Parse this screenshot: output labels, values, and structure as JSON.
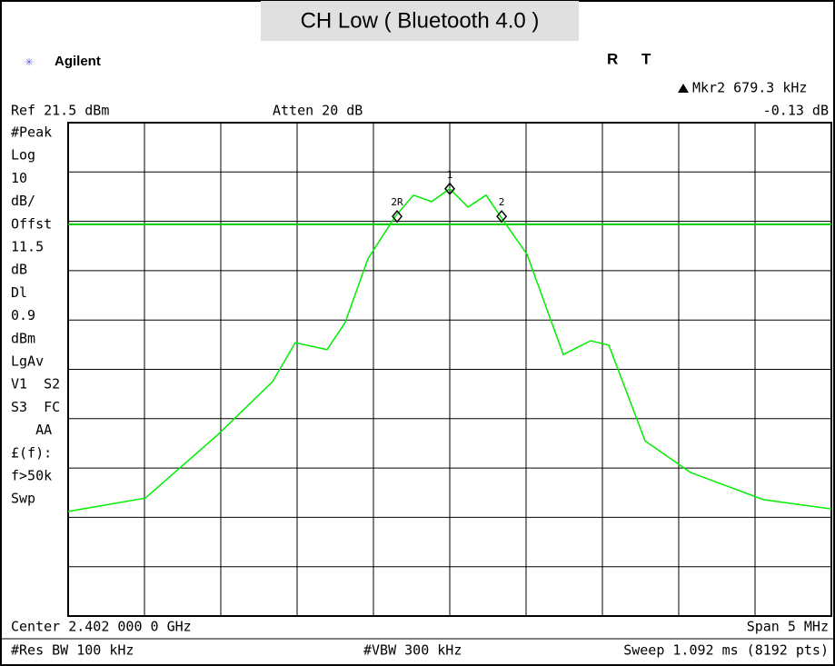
{
  "title": "CH Low ( Bluetooth 4.0 )",
  "brand": "Agilent",
  "status": [
    "R",
    "T"
  ],
  "marker_readout": [
    "Mkr2  679.3 kHz",
    "-0.13 dB"
  ],
  "ref": "Ref 21.5 dBm",
  "atten": "Atten 20 dB",
  "panel": [
    "#Peak",
    "Log",
    "10",
    "dB/",
    "Offst",
    "11.5",
    "dB",
    "Dl",
    "0.9",
    "dBm",
    "LgAv",
    "V1  S2",
    "S3  FC",
    "   AA",
    "£(f):",
    "f>50k",
    "Swp"
  ],
  "footer": [
    "Center 2.402 000 0 GHz",
    "Span 5 MHz",
    "#Res BW 100 kHz",
    "#VBW 300 kHz",
    "Sweep 1.092 ms (8192 pts)"
  ],
  "chart_data": {
    "type": "line",
    "x": [
      2399.5,
      2400.006,
      2400.482,
      2400.839,
      2400.988,
      2401.196,
      2401.315,
      2401.464,
      2401.643,
      2401.762,
      2401.881,
      2402.0,
      2402.119,
      2402.238,
      2402.339,
      2402.506,
      2402.744,
      2402.923,
      2403.042,
      2403.28,
      2403.577,
      2404.054,
      2404.5
    ],
    "series": [
      {
        "color": "#00ee00",
        "values": [
          -57.3,
          -54.6,
          -41.7,
          -31,
          -23.1,
          -24.5,
          -19,
          -6.1,
          2.5,
          6.8,
          5.5,
          8.1,
          4.4,
          6.8,
          2.2,
          -5.2,
          -25.5,
          -22.7,
          -23.6,
          -43,
          -49.4,
          -54.9,
          -56.8
        ]
      }
    ],
    "display_line": 0.9,
    "display_line_color": "#00cc00",
    "markers": [
      {
        "label": "1",
        "x": 2402.0,
        "value": 8.1
      },
      {
        "label": "2R",
        "x": 2401.655,
        "value": 2.5
      },
      {
        "label": "2",
        "x": 2402.34,
        "value": 2.5
      }
    ],
    "xlim": [
      2399.5,
      2404.5
    ],
    "xticks": [
      2399.5,
      2400,
      2400.5,
      2401,
      2401.5,
      2402,
      2402.5,
      2403,
      2403.5,
      2404,
      2404.5
    ],
    "ylim": [
      -78.5,
      21.5
    ],
    "yticks": [
      -78.5,
      -68.5,
      -58.5,
      -48.5,
      -38.5,
      -28.5,
      -18.5,
      -8.5,
      1.5,
      11.5,
      21.5
    ],
    "grid": true
  }
}
